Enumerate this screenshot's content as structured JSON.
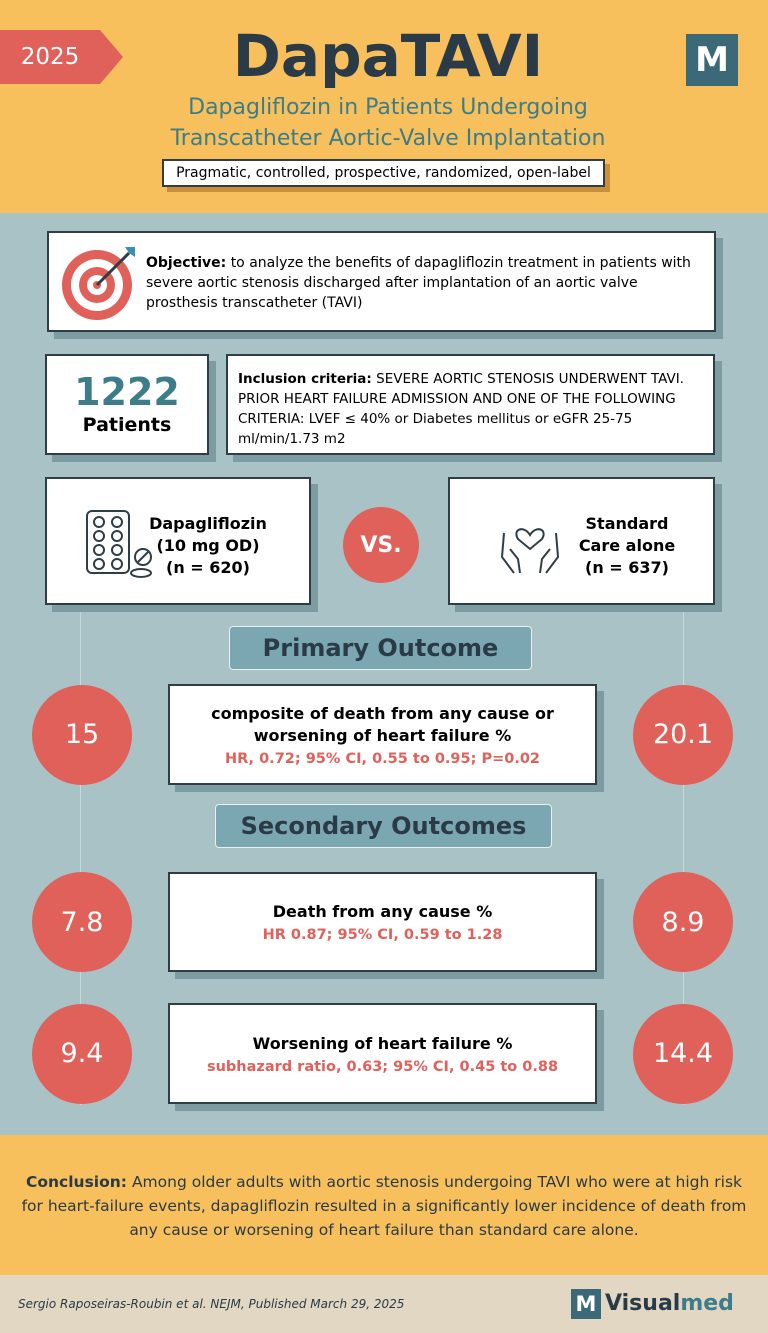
{
  "header": {
    "year": "2025",
    "title": "DapaTAVI",
    "subtitle": [
      "Dapagliflozin in Patients Undergoing",
      "Transcatheter Aortic-Valve Implantation"
    ],
    "design": "Pragmatic, controlled, prospective, randomized, open-label",
    "logo": "M"
  },
  "objective": {
    "label": "Objective:",
    "text": "to analyze the benefits of dapagliflozin treatment in patients with severe aortic stenosis discharged after implantation of an aortic valve prosthesis transcatheter (TAVI)"
  },
  "patients": {
    "count": 1222,
    "label": "Patients"
  },
  "inclusion": {
    "label": "Inclusion criteria:",
    "text": "SEVERE AORTIC STENOSIS UNDERWENT TAVI. PRIOR HEART FAILURE ADMISSION AND ONE OF THE FOLLOWING CRITERIA: LVEF ≤ 40% or Diabetes mellitus or eGFR 25-75 ml/min/1.73 m2"
  },
  "arms": [
    {
      "lines": [
        "Dapagliflozin",
        "(10 mg OD)",
        "(n = 620)"
      ]
    },
    {
      "lines": [
        "Standard",
        "Care alone",
        "(n = 637)"
      ]
    }
  ],
  "versus": "VS.",
  "primary_heading": "Primary Outcome",
  "secondary_heading": "Secondary Outcomes",
  "outcomes": [
    {
      "label": [
        "composite of death from any cause or",
        "worsening of heart failure %"
      ],
      "stats": "HR, 0.72; 95% CI, 0.55 to 0.95; P=0.02",
      "dapagliflozin": 15,
      "standard_care": 20.1
    },
    {
      "label": [
        "Death from any cause %"
      ],
      "stats": "HR 0.87; 95% CI, 0.59 to 1.28",
      "dapagliflozin": 7.8,
      "standard_care": 8.9
    },
    {
      "label": [
        "Worsening of heart failure %"
      ],
      "stats": "subhazard ratio, 0.63; 95% CI, 0.45 to 0.88",
      "dapagliflozin": 9.4,
      "standard_care": 14.4
    }
  ],
  "conclusion": {
    "label": "Conclusion:",
    "text": "Among older adults with aortic stenosis undergoing TAVI who were at high risk for heart-failure events, dapagliflozin resulted in a significantly lower incidence of death from any cause or worsening of heart failure than standard care alone."
  },
  "footer": {
    "citation": "Sergio Raposeiras-Roubin  et al. NEJM, Published March 29, 2025",
    "brand_logo": "M",
    "brand": [
      "Visual",
      "med"
    ]
  }
}
